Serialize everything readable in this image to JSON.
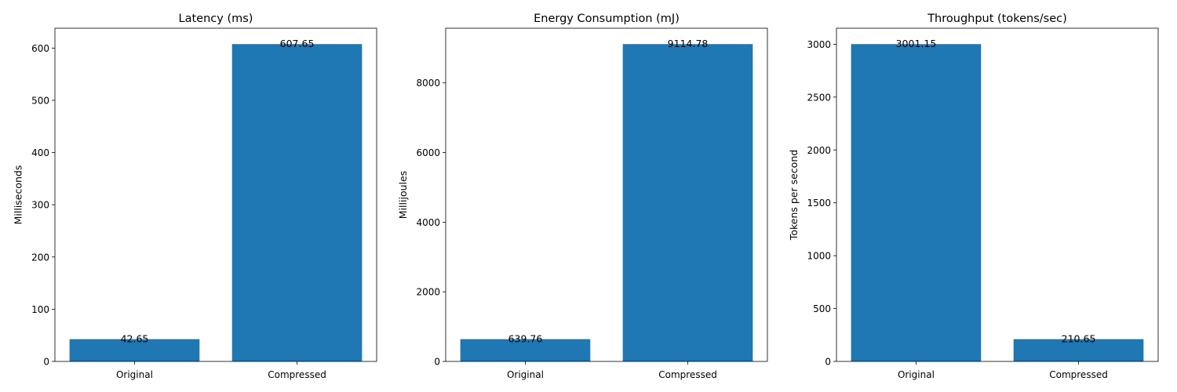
{
  "chart_data": [
    {
      "type": "bar",
      "title": "Latency (ms)",
      "xlabel": "",
      "ylabel": "Milliseconds",
      "categories": [
        "Original",
        "Compressed"
      ],
      "values": [
        42.65,
        607.65
      ],
      "value_labels": [
        "42.65",
        "607.65"
      ],
      "ylim": [
        0,
        638.0325
      ],
      "yticks": [
        0,
        100,
        200,
        300,
        400,
        500,
        600
      ],
      "grid": false,
      "color": "#1f77b4"
    },
    {
      "type": "bar",
      "title": "Energy Consumption (mJ)",
      "xlabel": "",
      "ylabel": "Millijoules",
      "categories": [
        "Original",
        "Compressed"
      ],
      "values": [
        639.76,
        9114.78
      ],
      "value_labels": [
        "639.76",
        "9114.78"
      ],
      "ylim": [
        0,
        9570.519
      ],
      "yticks": [
        0,
        2000,
        4000,
        6000,
        8000
      ],
      "grid": false,
      "color": "#1f77b4"
    },
    {
      "type": "bar",
      "title": "Throughput (tokens/sec)",
      "xlabel": "",
      "ylabel": "Tokens per second",
      "categories": [
        "Original",
        "Compressed"
      ],
      "values": [
        3001.15,
        210.65
      ],
      "value_labels": [
        "3001.15",
        "210.65"
      ],
      "ylim": [
        0,
        3151.2075
      ],
      "yticks": [
        0,
        500,
        1000,
        1500,
        2000,
        2500,
        3000
      ],
      "grid": false,
      "color": "#1f77b4"
    }
  ]
}
